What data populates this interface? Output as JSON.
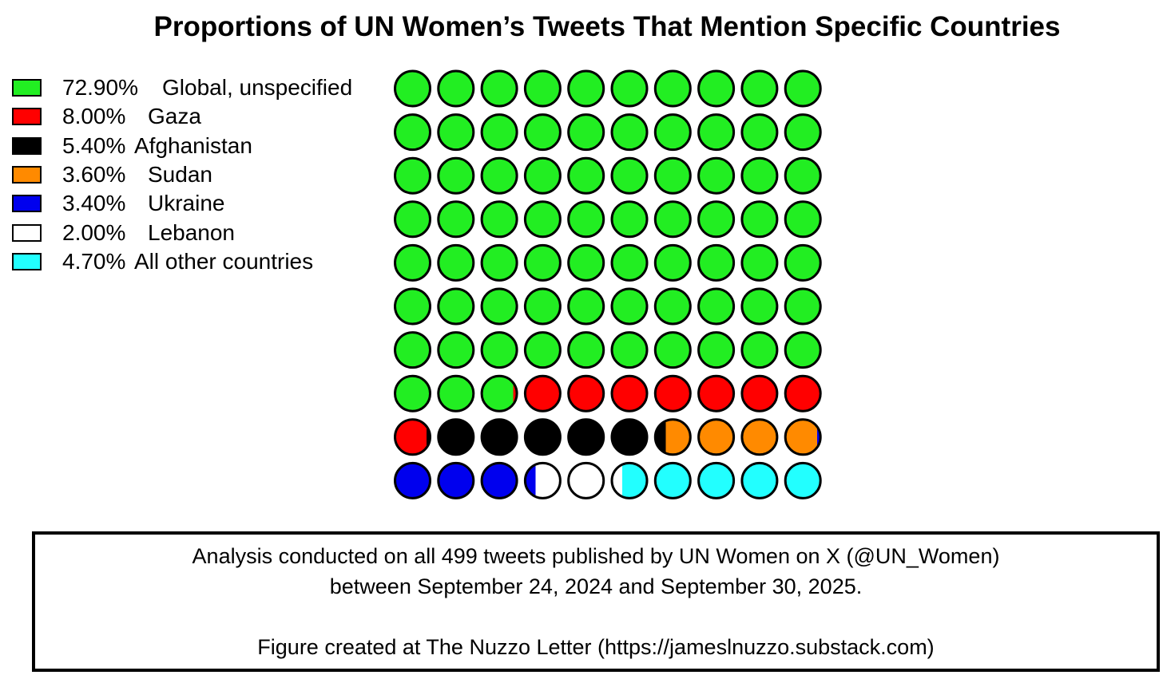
{
  "chart_data": {
    "type": "waffle",
    "title": "Proportions of UN Women’s Tweets That Mention Specific Countries",
    "grid": {
      "rows": 10,
      "cols": 10
    },
    "legend_placement": "top-left",
    "categories": [
      {
        "pct_label": "72.90%",
        "name": "Global, unspecified",
        "value": 72.9,
        "color": "#22ee22"
      },
      {
        "pct_label": "8.00%",
        "name": "Gaza",
        "value": 8.0,
        "color": "#ff0000"
      },
      {
        "pct_label": "5.40%",
        "name": "Afghanistan",
        "value": 5.4,
        "color": "#000000"
      },
      {
        "pct_label": "3.60%",
        "name": "Sudan",
        "value": 3.6,
        "color": "#ff8a00"
      },
      {
        "pct_label": "3.40%",
        "name": "Ukraine",
        "value": 3.4,
        "color": "#0000ee"
      },
      {
        "pct_label": "2.00%",
        "name": "Lebanon",
        "value": 2.0,
        "color": "#ffffff"
      },
      {
        "pct_label": "4.70%",
        "name": "All other countries",
        "value": 4.7,
        "color": "#22ffff"
      }
    ]
  },
  "footer": {
    "line1": "Analysis conducted on all 499 tweets published by UN Women on X (@UN_Women)",
    "line2": "between September 24, 2024 and September 30, 2025.",
    "line3": "Figure created at The Nuzzo Letter (https://jameslnuzzo.substack.com)"
  }
}
